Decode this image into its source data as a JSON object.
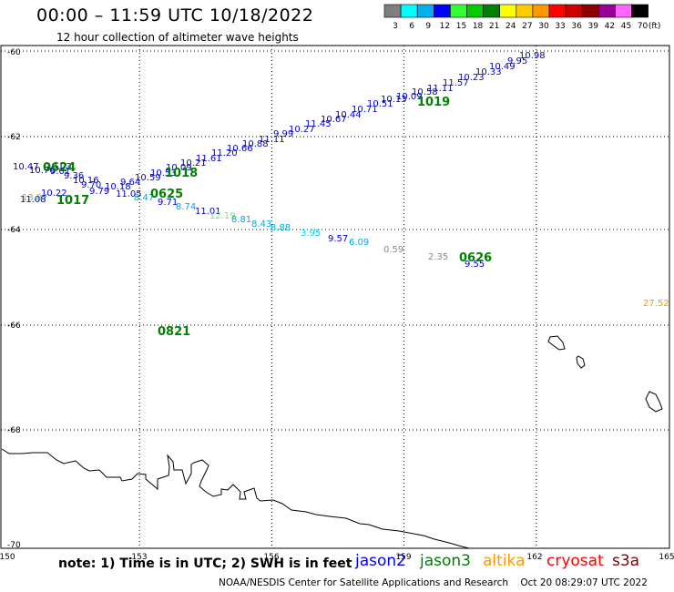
{
  "header": {
    "title": "00:00 – 11:59 UTC 10/18/2022",
    "subtitle": "12 hour collection of altimeter wave heights"
  },
  "legend": {
    "unit": "(ft)",
    "bins": [
      {
        "label": "3",
        "color": "#7f7f7f"
      },
      {
        "label": "6",
        "color": "#00ffff"
      },
      {
        "label": "9",
        "color": "#00b0f0"
      },
      {
        "label": "12",
        "color": "#0000ff"
      },
      {
        "label": "15",
        "color": "#33ff33"
      },
      {
        "label": "18",
        "color": "#00cc00"
      },
      {
        "label": "21",
        "color": "#008000"
      },
      {
        "label": "24",
        "color": "#ffff00"
      },
      {
        "label": "27",
        "color": "#ffcc00"
      },
      {
        "label": "30",
        "color": "#ff9900"
      },
      {
        "label": "33",
        "color": "#ff0000"
      },
      {
        "label": "36",
        "color": "#cc0000"
      },
      {
        "label": "39",
        "color": "#8b0000"
      },
      {
        "label": "42",
        "color": "#990099"
      },
      {
        "label": "45",
        "color": "#ff66ff"
      },
      {
        "label": "70",
        "color": "#000000"
      }
    ]
  },
  "axes": {
    "lon_labels": [
      "150",
      "153",
      "156",
      "159",
      "162",
      "165"
    ],
    "lat_labels": [
      "-60",
      "-62",
      "-64",
      "-66",
      "-68",
      "-70"
    ]
  },
  "times": [
    {
      "label": "0624",
      "lon": 151.15,
      "lat": -62.65
    },
    {
      "label": "1018",
      "lon": 153.95,
      "lat": -62.76
    },
    {
      "label": "0625",
      "lon": 153.65,
      "lat": -63.17
    },
    {
      "label": "1017",
      "lon": 151.45,
      "lat": -63.23
    },
    {
      "label": "1019",
      "lon": 159.65,
      "lat": -61.24
    },
    {
      "label": "0626",
      "lon": 160.75,
      "lat": -64.56
    },
    {
      "label": "0821",
      "lon": 154.2,
      "lat": -66.12
    }
  ],
  "swh": [
    {
      "label": "10.98",
      "lon": 162.5,
      "lat": -60.09,
      "color": "#0000cc"
    },
    {
      "label": "9.95",
      "lon": 161.95,
      "lat": -60.23,
      "color": "#0000cc"
    },
    {
      "label": "10.49",
      "lon": 161.4,
      "lat": -60.36,
      "color": "#0000cc"
    },
    {
      "label": "10.33",
      "lon": 160.85,
      "lat": -60.49,
      "color": "#0000cc"
    },
    {
      "label": "10.23",
      "lon": 160.3,
      "lat": -60.62,
      "color": "#0000cc"
    },
    {
      "label": "11.57",
      "lon": 159.75,
      "lat": -60.75,
      "color": "#0000cc"
    },
    {
      "label": "11.11",
      "lon": 159.25,
      "lat": -60.88,
      "color": "#0000cc"
    },
    {
      "label": "10.58",
      "lon": 158.7,
      "lat": -61.0,
      "color": "#0000cc"
    },
    {
      "label": "10.09",
      "lon": 158.15,
      "lat": -61.13,
      "color": "#0000cc"
    },
    {
      "label": "10.13",
      "lon": 157.6,
      "lat": -61.22,
      "color": "#0000cc"
    },
    {
      "label": "10.51",
      "lon": 157.3,
      "lat": -61.36,
      "color": "#0000cc"
    },
    {
      "label": "10.71",
      "lon": 156.95,
      "lat": -61.46,
      "color": "#0000cc"
    },
    {
      "label": "10.44",
      "lon": 156.4,
      "lat": -61.6,
      "color": "#0000cc"
    },
    {
      "label": "10.67",
      "lon": 155.85,
      "lat": -61.73,
      "color": "#0000cc"
    },
    {
      "label": "11.45",
      "lon": 155.3,
      "lat": -61.86,
      "color": "#0000cc"
    },
    {
      "label": "10.27",
      "lon": 154.75,
      "lat": -61.99,
      "color": "#0000cc"
    },
    {
      "label": "9.99",
      "lon": 154.25,
      "lat": -62.11,
      "color": "#0000cc"
    },
    {
      "label": "11.11",
      "lon": 153.7,
      "lat": -62.24,
      "color": "#0000cc"
    },
    {
      "label": "10.88",
      "lon": 153.15,
      "lat": -62.37,
      "color": "#0000cc"
    },
    {
      "label": "10.66",
      "lon": 152.6,
      "lat": -62.5,
      "color": "#0000cc"
    },
    {
      "label": "11.20",
      "lon": 152.05,
      "lat": -62.63,
      "color": "#0000cc"
    },
    {
      "label": "11.61",
      "lon": 151.55,
      "lat": -62.76,
      "color": "#0000cc"
    },
    {
      "label": "10.21",
      "lon": 151.0,
      "lat": -62.88,
      "color": "#0000cc"
    },
    {
      "label": "10.09",
      "lon": 150.45,
      "lat": -63.01,
      "color": "#0000cc"
    },
    {
      "label": "10.53",
      "lon": 149.95,
      "lat": -63.14,
      "color": "#0000cc"
    },
    {
      "label": "10.59",
      "lon": 149.4,
      "lat": -63.26,
      "color": "#0000cc"
    },
    {
      "label": "9.64",
      "lon": 148.85,
      "lat": -63.39,
      "color": "#0000cc"
    },
    {
      "label": "10.18",
      "lon": 148.3,
      "lat": -63.52,
      "color": "#0000cc"
    },
    {
      "label": "9.79",
      "lon": 147.8,
      "lat": -63.65,
      "color": "#0000cc"
    },
    {
      "label": "9.70",
      "lon": 147.25,
      "lat": -63.78,
      "color": "#0000cc"
    },
    {
      "label": "10.16",
      "lon": 146.7,
      "lat": -63.9,
      "color": "#0000cc"
    },
    {
      "label": "9.36",
      "lon": 146.15,
      "lat": -64.03,
      "color": "#0000cc"
    },
    {
      "label": "9.01",
      "lon": 145.65,
      "lat": -64.16,
      "color": "#0000cc"
    },
    {
      "label": "10.03",
      "lon": 147.1,
      "lat": -64.27,
      "color": "#0000cc"
    },
    {
      "label": "10.76",
      "lon": 147.6,
      "lat": -64.4,
      "color": "#0000cc"
    },
    {
      "label": "10.47",
      "lon": 146.7,
      "lat": -64.27,
      "color": "#0000cc"
    },
    {
      "label": "10.22",
      "lon": 146.15,
      "lat": -64.34,
      "color": "#0000cc"
    },
    {
      "label": "13.87",
      "lon": 145.75,
      "lat": -64.4,
      "color": "#66cc66"
    },
    {
      "label": "11.08",
      "lon": 148.2,
      "lat": -64.45,
      "color": "#0000cc"
    },
    {
      "label": "11.05",
      "lon": 148.85,
      "lat": -64.56,
      "color": "#0000cc"
    },
    {
      "label": "8.47",
      "lon": 149.4,
      "lat": -64.67,
      "color": "#00aaee"
    },
    {
      "label": "9.71",
      "lon": 150.05,
      "lat": -64.76,
      "color": "#0000cc"
    },
    {
      "label": "8.74",
      "lon": 150.55,
      "lat": -64.86,
      "color": "#00aaee"
    },
    {
      "label": "11.01",
      "lon": 151.05,
      "lat": -64.95,
      "color": "#0000cc"
    },
    {
      "label": "12.19",
      "lon": 151.6,
      "lat": -65.06,
      "color": "#66ee66"
    },
    {
      "label": "8.81",
      "lon": 152.15,
      "lat": -65.16,
      "color": "#00aaee"
    },
    {
      "label": "8.43",
      "lon": 152.65,
      "lat": -65.26,
      "color": "#00aaee"
    },
    {
      "label": "8.88",
      "lon": 153.2,
      "lat": -65.37,
      "color": "#00aaee"
    },
    {
      "label": "3.95",
      "lon": 153.75,
      "lat": -65.47,
      "color": "#00ccee"
    },
    {
      "label": "9.57",
      "lon": 154.25,
      "lat": -65.56,
      "color": "#0000cc"
    },
    {
      "label": "6.09",
      "lon": 155.1,
      "lat": -65.75,
      "color": "#00aaee"
    },
    {
      "label": "0.59",
      "lon": 160.25,
      "lat": -64.56,
      "color": "#888888"
    },
    {
      "label": "2.35",
      "lon": 160.95,
      "lat": -64.72,
      "color": "#888888"
    },
    {
      "label": "9.55",
      "lon": 164.25,
      "lat": -65.62,
      "color": "#0000cc"
    },
    {
      "label": "27.52",
      "lon": 153.25,
      "lat": -66.12,
      "color": "#ff9900"
    }
  ],
  "footer": {
    "note": "note: 1) Time is in UTC; 2) SWH is in feet",
    "credit": "NOAA/NESDIS Center for Satellite Applications and Research    Oct 20 08:29:07 UTC 2022",
    "missions": [
      {
        "label": "jason2",
        "color": "#0000ff"
      },
      {
        "label": "jason3",
        "color": "#008000"
      },
      {
        "label": "altika",
        "color": "#ff9900"
      },
      {
        "label": "cryosat",
        "color": "#ff0000"
      },
      {
        "label": "s3a",
        "color": "#800000"
      }
    ]
  }
}
